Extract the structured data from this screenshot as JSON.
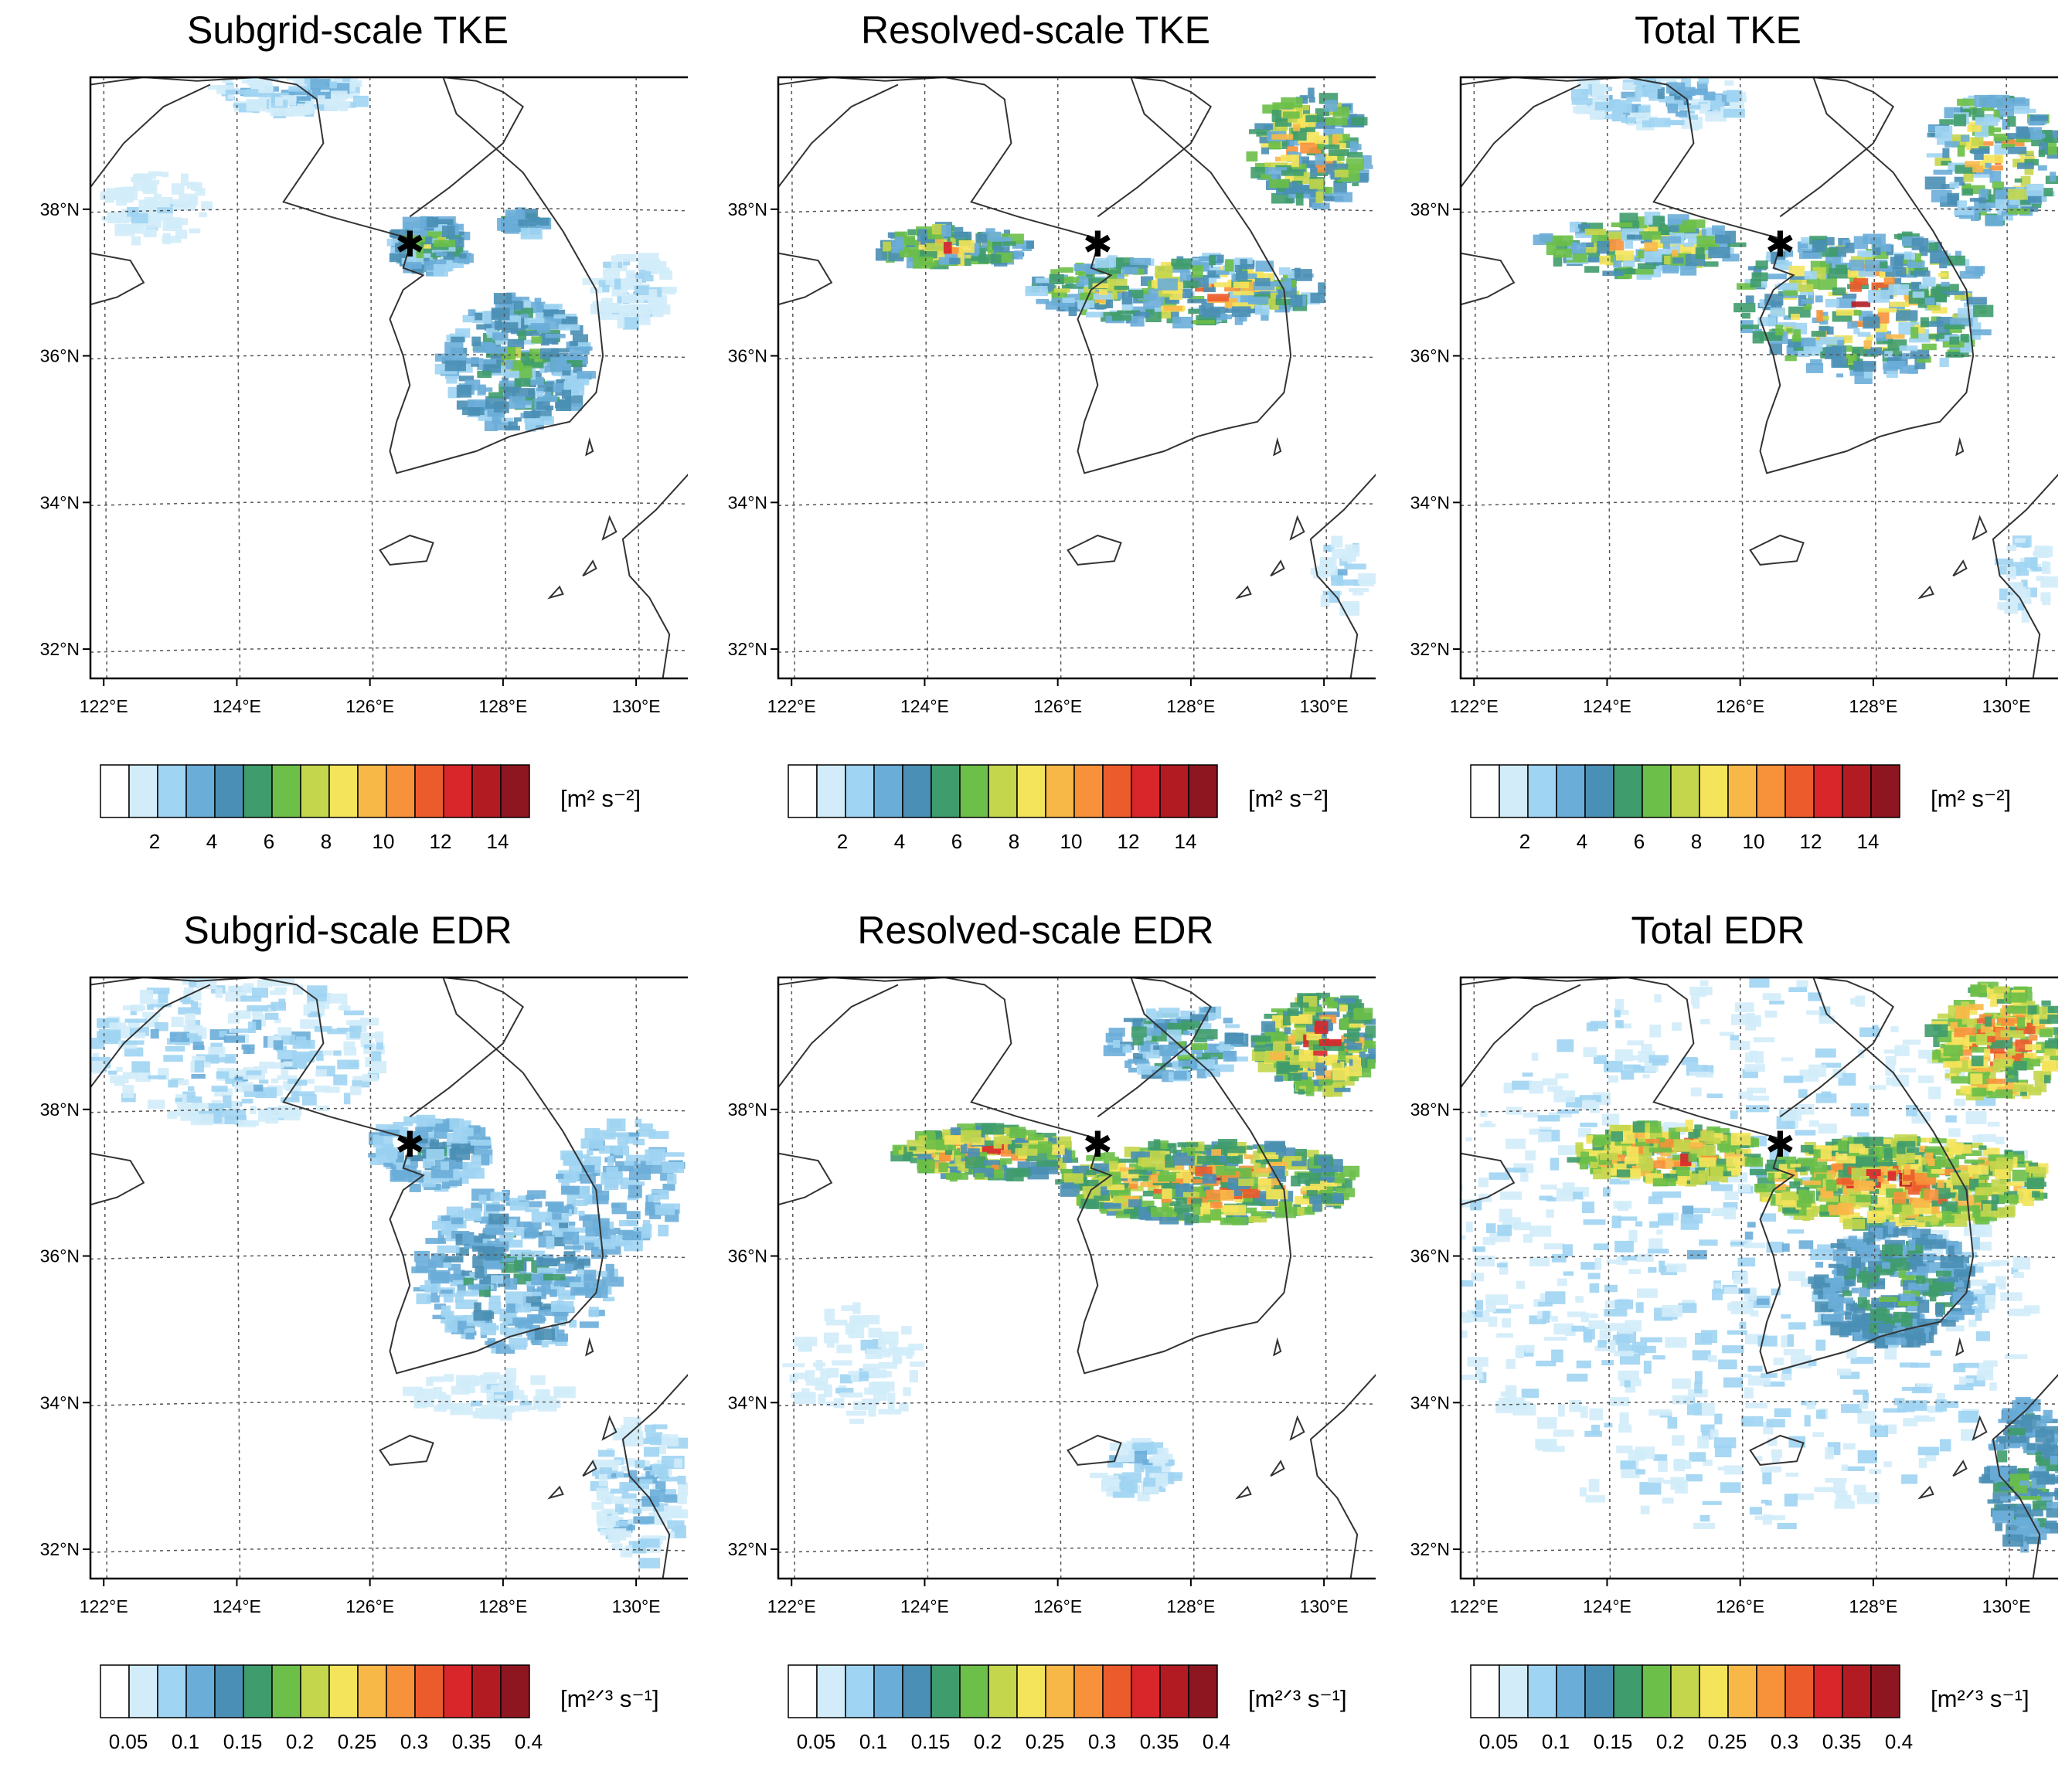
{
  "figure": {
    "panels": [
      {
        "title": "Subgrid-scale TKE",
        "units": "[m² s⁻²]",
        "kind": "tke",
        "pattern": "sgs_tke"
      },
      {
        "title": "Resolved-scale TKE",
        "units": "[m² s⁻²]",
        "kind": "tke",
        "pattern": "res_tke"
      },
      {
        "title": "Total TKE",
        "units": "[m² s⁻²]",
        "kind": "tke",
        "pattern": "tot_tke"
      },
      {
        "title": "Subgrid-scale EDR",
        "units": "[m²ᐟ³ s⁻¹]",
        "kind": "edr",
        "pattern": "sgs_edr"
      },
      {
        "title": "Resolved-scale EDR",
        "units": "[m²ᐟ³ s⁻¹]",
        "kind": "edr",
        "pattern": "res_edr"
      },
      {
        "title": "Total EDR",
        "units": "[m²ᐟ³ s⁻¹]",
        "kind": "edr",
        "pattern": "tot_edr"
      }
    ],
    "lon_ticks": [
      "122°E",
      "124°E",
      "126°E",
      "128°E",
      "130°E"
    ],
    "lat_ticks": [
      "38°N",
      "36°N",
      "34°N",
      "32°N"
    ],
    "lon_values": [
      122,
      124,
      126,
      128,
      130
    ],
    "lat_values": [
      38,
      36,
      34,
      32
    ],
    "map_extent": {
      "lon": [
        121.8,
        130.8
      ],
      "lat": [
        31.6,
        39.8
      ]
    },
    "marker": {
      "symbol": "✱",
      "lon": 126.6,
      "lat": 37.5
    },
    "tke_colorbar_labels": [
      "2",
      "4",
      "6",
      "8",
      "10",
      "12",
      "14"
    ],
    "edr_colorbar_labels": [
      "0.05",
      "0.1",
      "0.15",
      "0.2",
      "0.25",
      "0.3",
      "0.35",
      "0.4"
    ],
    "colorbar_colors": [
      "#ffffff",
      "#d2ecfa",
      "#9fd4f2",
      "#6aadd8",
      "#4a8fb5",
      "#3f9c6c",
      "#6cbf48",
      "#c3d64c",
      "#f4e45b",
      "#f8b848",
      "#f7913a",
      "#ec5b2b",
      "#d8262b",
      "#b31b23",
      "#8e1620"
    ]
  }
}
